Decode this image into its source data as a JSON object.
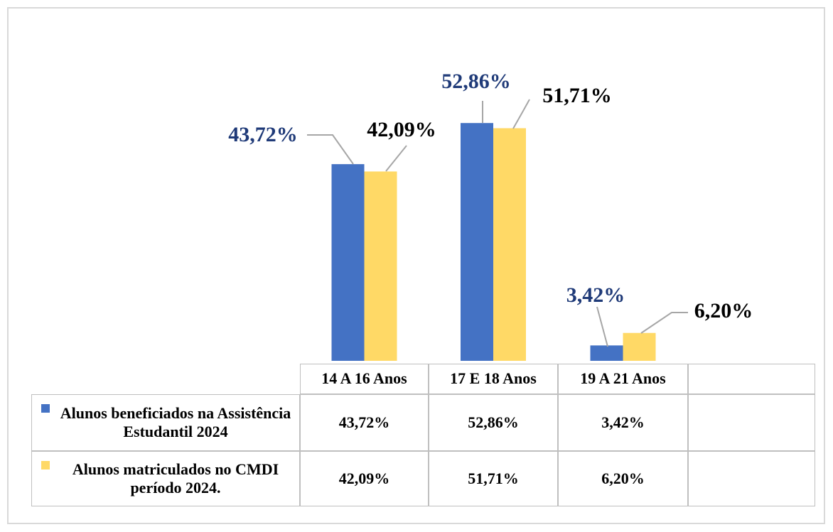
{
  "chart_data": {
    "type": "bar",
    "categories": [
      "14 A  16 Anos",
      "17 E 18 Anos",
      "19 A 21 Anos"
    ],
    "series": [
      {
        "name": "Alunos beneficiados na Assistência Estudantil 2024",
        "color": "#4472c4",
        "label_color": "#1f3a78",
        "values": [
          43.72,
          52.86,
          3.42
        ],
        "value_labels": [
          "43,72%",
          "52,86%",
          "3,42%"
        ]
      },
      {
        "name": "Alunos matriculados no CMDI período 2024.",
        "color": "#ffd966",
        "label_color": "#000000",
        "values": [
          42.09,
          51.71,
          6.2
        ],
        "value_labels": [
          "42,09%",
          "51,71%",
          "6,20%"
        ]
      }
    ],
    "ylim": [
      0,
      60
    ],
    "grid": false
  }
}
